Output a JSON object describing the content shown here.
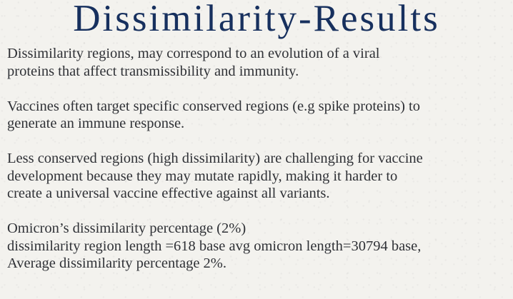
{
  "title": "Dissimilarity-Results",
  "paragraphs": [
    {
      "lines": [
        "Dissimilarity regions, may correspond to an evolution of a viral",
        "proteins that affect transmissibility and immunity."
      ]
    },
    {
      "lines": [
        "Vaccines often target specific conserved regions (e.g spike proteins) to",
        "generate an immune response."
      ]
    },
    {
      "lines": [
        "Less conserved regions (high dissimilarity) are challenging for vaccine",
        "development because they may mutate rapidly, making it harder to",
        "create a universal vaccine effective against all variants."
      ]
    },
    {
      "lines": [
        "Omicron’s dissimilarity percentage (2%)",
        "dissimilarity region length =618 base avg omicron length=30794 base,",
        "Average dissimilarity percentage 2%."
      ]
    }
  ]
}
